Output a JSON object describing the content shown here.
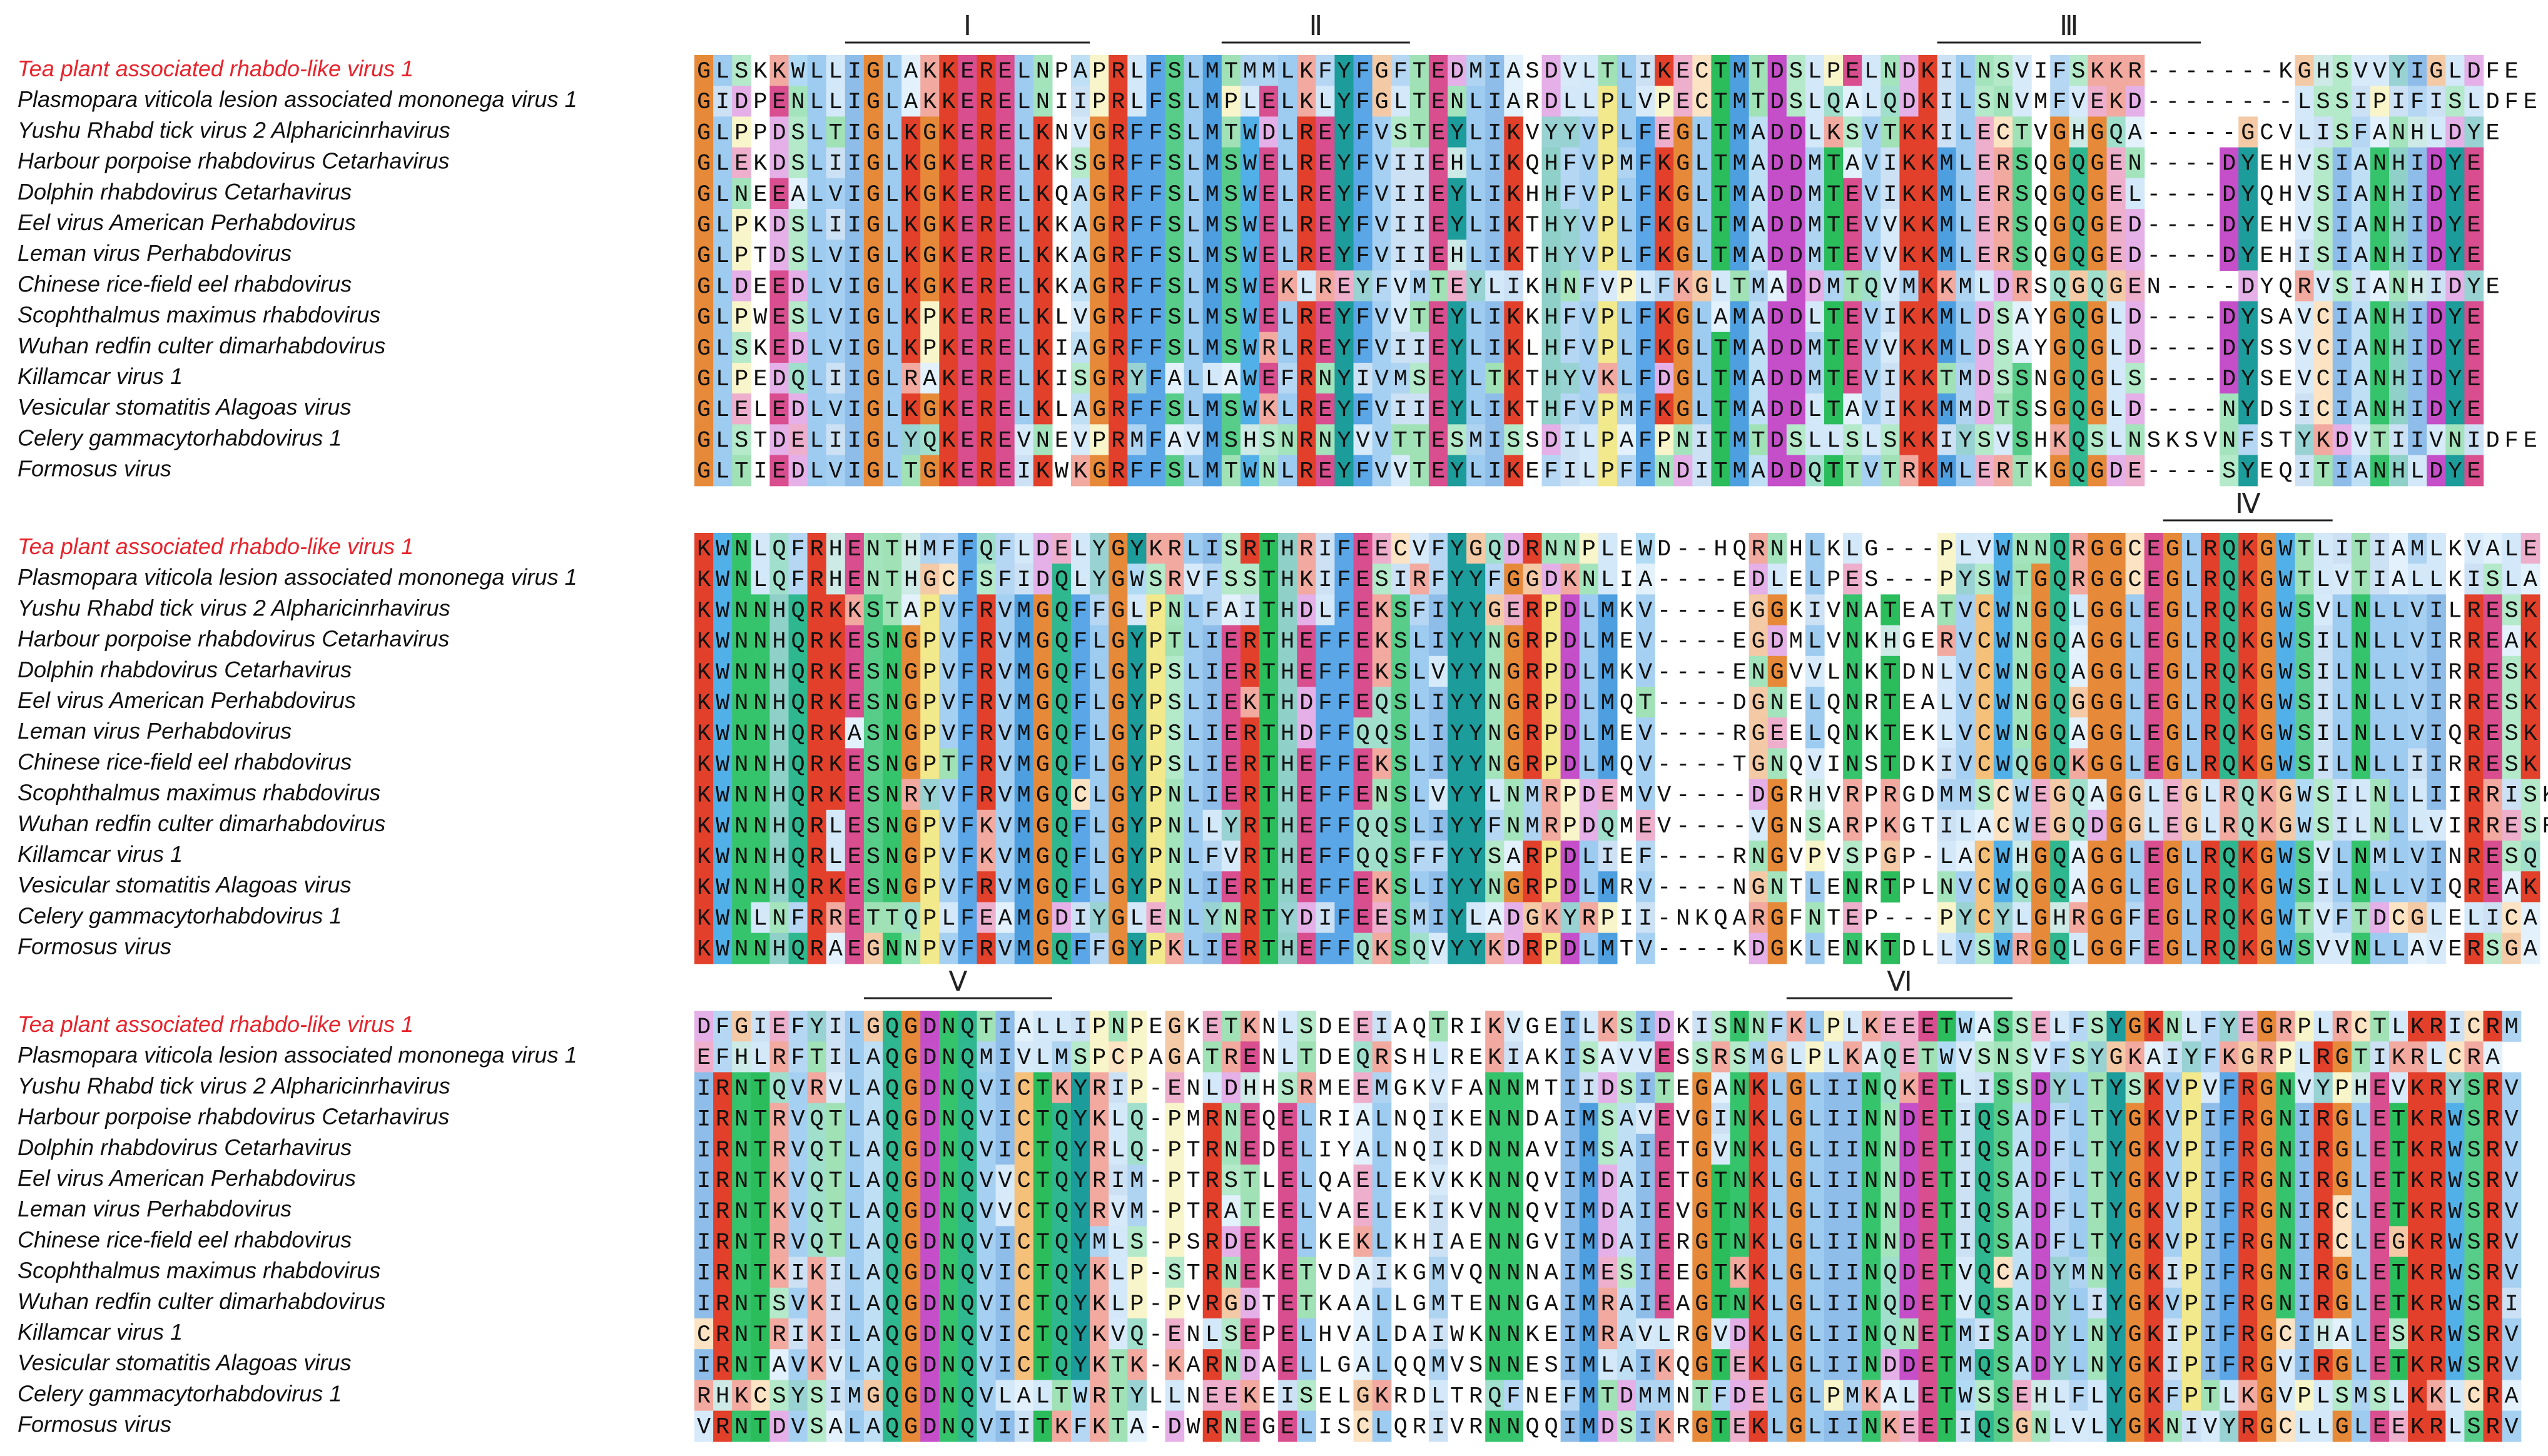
{
  "figure": {
    "highlight_color": "#e8232b",
    "blocks": [
      {
        "motifs": [
          {
            "label": "Ⅰ",
            "start": 8,
            "end": 20
          },
          {
            "label": "Ⅱ",
            "start": 28,
            "end": 37
          },
          {
            "label": "Ⅲ",
            "start": 66,
            "end": 79
          }
        ],
        "rows": [
          {
            "name": "Tea plant associated rhabdo-like virus 1",
            "highlight": true,
            "seq": "GLSKKWLLIGLAKKERELNPAPRLFSLMTMMLKFYFGFTEDMIASDVLTLIKECTMTDSLPELNDKILNSVIFSKKR-------KGHSVVYIGLDFE"
          },
          {
            "name": "Plasmopara viticola lesion associated mononega virus 1",
            "highlight": false,
            "seq": "GIDPENLLIGLAKKERELNIIPRLFSLMPLELKLYFGLTENLIARDLLPLVPECTMTDSLQALQDKILSNVMFVEKD--------LSSIPIFISLDFE"
          },
          {
            "name": "Yushu Rhabd tick virus 2 Alpharicinrhavirus",
            "highlight": false,
            "seq": "GLPPDSLTIGLKGKERELKNVGRFFSLMTWDLREYFVSTEYLIKVYYVPLFEGLTMADDLKSVTKKILECTVGHGQA-----GCVLISFANHLDYE"
          },
          {
            "name": "Harbour porpoise rhabdovirus Cetarhavirus",
            "highlight": false,
            "seq": "GLEKDSLIIGLKGKERELKKSGRFFSLMSWELREYFVIIEHLIKQHFVPMFKGLTMADDMTAVIKKMLERSQGQGEN----DYEHVSIANHIDYE"
          },
          {
            "name": "Dolphin rhabdovirus Cetarhavirus",
            "highlight": false,
            "seq": "GLNEEALVIGLKGKERELKQAGRFFSLMSWELREYFVIIEYLIKHHFVPLFKGLTMADDMTEVIKKMLERSQGQGEL----DYQHVSIANHIDYE"
          },
          {
            "name": "Eel virus American Perhabdovirus",
            "highlight": false,
            "seq": "GLPKDSLIIGLKGKERELKKAGRFFSLMSWELREYFVIIEYLIKTHYVPLFKGLTMADDMTEVVKKMLERSQGQGED----DYEHVSIANHIDYE"
          },
          {
            "name": "Leman virus Perhabdovirus",
            "highlight": false,
            "seq": "GLPTDSLVIGLKGKERELKKAGRFFSLMSWELREYFVIIEHLIKTHYVPLFKGLTMADDMTEVVKKMLERSQGQGED----DYEHISIANHIDYE"
          },
          {
            "name": "Chinese rice-field eel rhabdovirus",
            "highlight": false,
            "seq": "GLDEEDLVIGLKGKERELKKAGRFFSLMSWEKLREYFVMTEYLIKHNFVPLFKGLTMADDMTQVMKKMLDRSQGQGEN----DYQRVSIANHIDYE"
          },
          {
            "name": "Scophthalmus maximus rhabdovirus",
            "highlight": false,
            "seq": "GLPWESLVIGLKPKERELKLVGRFFSLMSWELREYFVVTEYLIKKHFVPLFKGLAMADDLTEVIKKMLDSAYGQGLD----DYSAVCIANHIDYE"
          },
          {
            "name": "Wuhan redfin culter dimarhabdovirus",
            "highlight": false,
            "seq": "GLSKEDLVIGLKPKERELKIAGRFFSLMSWRLREYFVIIEYLIKLHFVPLFKGLTMADDMTEVVKKMLDSAYGQGLD----DYSSVCIANHIDYE"
          },
          {
            "name": "Killamcar virus 1",
            "highlight": false,
            "seq": "GLPEDQLIIGLRAKERELKISGRYFALLAWEFRNYIVMSEYLTKTHYVKLFDGLTMADDMTEVIKKTMDSSNGQGLS----DYSEVCIANHIDYE"
          },
          {
            "name": "Vesicular stomatitis Alagoas virus",
            "highlight": false,
            "seq": "GLELEDLVIGLKGKERELKLAGRFFSLMSWKLREYFVIIEYLIKTHFVPMFKGLTMADDLTAVIKKMMDTSSGQGLD----NYDSICIANHIDYE"
          },
          {
            "name": "Celery gammacytorhabdovirus 1",
            "highlight": false,
            "seq": "GLSTDELIIGLYQKEREVNEVPRMFAVMSHSNRNYVVTTESMISSDILPAFPNITMTDSLLSLSKKIYSVSHKQSLNSKSVNFSTYKDVTIIVNIDFE"
          },
          {
            "name": "Formosus virus",
            "highlight": false,
            "seq": "GLTIEDLVIGLTGKEREIKWKGRFFSLMTWNLREYFVVTEYLIKEFILPFFNDITMADDQTTVTRKMLERTKGQGDE----SYEQITIANHLDYE"
          }
        ]
      },
      {
        "motifs": [
          {
            "label": "Ⅳ",
            "start": 78,
            "end": 86
          }
        ],
        "rows": [
          {
            "name": "Tea plant associated rhabdo-like virus 1",
            "highlight": true,
            "seq": "KWNLQFRHENTHMFFQFLDELYGYKRLISRTHRIFEECVFYGQDRNNPLEWD--HQRNHLKLG---PLVWNNQRGGCEGLRQKGWTLITIAMLKVALE"
          },
          {
            "name": "Plasmopara viticola lesion associated mononega virus 1",
            "highlight": false,
            "seq": "KWNLQFRHENTHGCFSFIDQLYGWSRVFSSTHKIFESIRFYYFGGDKNLIA----EDLELPES---PYSWTGQRGGCEGLRQKGWTLVTIALLKISLA"
          },
          {
            "name": "Yushu Rhabd tick virus 2 Alpharicinrhavirus",
            "highlight": false,
            "seq": "KWNNHQRKKSTAPVFRVMGQFFGLPNLFAITHDLFEKSFIYYGERPDLMKV----EGGKIVNATEATVCWNGQLGGLEGLRQKGWSVLNLLVILRESK"
          },
          {
            "name": "Harbour porpoise rhabdovirus Cetarhavirus",
            "highlight": false,
            "seq": "KWNNHQRKESNGPVFRVMGQFLGYPTLIERTHEFFEKSLIYYNGRPDLMEV----EGDMLVNKHGERVCWNGQAGGLEGLRQKGWSILNLLVIRREAK"
          },
          {
            "name": "Dolphin rhabdovirus Cetarhavirus",
            "highlight": false,
            "seq": "KWNNHQRKESNGPVFRVMGQFLGYPSLIERTHEFFEKSLVYYNGRPDLMKV----ENGVVLNKTDNLVCWNGQAGGLEGLRQKGWSILNLLVIRRESK"
          },
          {
            "name": "Eel virus American Perhabdovirus",
            "highlight": false,
            "seq": "KWNNHQRKESNGPVFRVMGQFLGYPSLIEKTHDFFEQSLIYYNGRPDLMQT----DGNELQNRTEALVCWNGQGGGLEGLRQKGWSILNLLVIRRESK"
          },
          {
            "name": "Leman virus Perhabdovirus",
            "highlight": false,
            "seq": "KWNNHQRKASNGPVFRVMGQFLGYPSLIERTHDFFQQSLIYYNGRPDLMEV----RGEELQNKTEKLVCWNGQAGGLEGLRQKGWSILNLLVIQRESK"
          },
          {
            "name": "Chinese rice-field eel rhabdovirus",
            "highlight": false,
            "seq": "KWNNHQRKESNGPTFRVMGQFLGYPSLIERTHEFFEKSLIYYNGRPDLMQV----TGNQVINSTDKIVCWQGQKGGLEGLRQKGWSILNLLIIRRESK"
          },
          {
            "name": "Scophthalmus maximus rhabdovirus",
            "highlight": false,
            "seq": "KWNNHQRKESNRYVFRVMGQCLGYPNLIERTHEFFENSLVYYLNMRPDEMVV----DGRHVRPRGDMMSCWEGQAGGLEGLRQKGWSILNLLIIRRISK"
          },
          {
            "name": "Wuhan redfin culter dimarhabdovirus",
            "highlight": false,
            "seq": "KWNNHQRLESNGPVFKVMGQFLGYPNLLYRTHEFFQQSLIYYFNMRPDQMEV----VGNSARPKGTILACWEGQDGGLEGLRQKGWSILNLLVIRRESR"
          },
          {
            "name": "Killamcar virus 1",
            "highlight": false,
            "seq": "KWNNHQRLESNGPVFKVMGQFLGYPNLFVRTHEFFQQSFFYYSARPDLIEF----RNGVPVSPGP-LACWHGQAGGLEGLRQKGWSVLNMLVINRESQ"
          },
          {
            "name": "Vesicular stomatitis Alagoas virus",
            "highlight": false,
            "seq": "KWNNHQRKESNGPVFRVMGQFLGYPNLIERTHEFFEKSLIYYNGRPDLMRV----NGNTLENRTPLNVCWQGQAGGLEGLRQKGWSILNLLVIQREAK"
          },
          {
            "name": "Celery gammacytorhabdovirus 1",
            "highlight": false,
            "seq": "KWNLNFRRETTQPLFEAMGDIYGLENLYNRTYDIFEESMIYLADGKYRPII-NKQARGFNTEP---PYCYLGHRGGFEGLRQKGWTVFTDCGLELICA"
          },
          {
            "name": "Formosus virus",
            "highlight": false,
            "seq": "KWNNHQRAEGNNPVFRVMGQFFGYPKLIERTHEFFQKSQVYYKDRPDLMTV----KDGKLENKTDLLVSWRGQLGGFEGLRQKGWSVVNLLAVERSGA"
          }
        ]
      },
      {
        "motifs": [
          {
            "label": "Ⅴ",
            "start": 9,
            "end": 18
          },
          {
            "label": "Ⅵ",
            "start": 58,
            "end": 69
          }
        ],
        "rows": [
          {
            "name": "Tea plant associated rhabdo-like virus 1",
            "highlight": true,
            "seq": "DFGIEFYILGQGDNQTIALLIPNPEGKETKNLSDEEIAQTRIKVGEILKSIDKISNNFKLPLKEEETWASSELFSYGKNLFYEGRPLRCTLKRICRM"
          },
          {
            "name": "Plasmopara viticola lesion associated mononega virus 1",
            "highlight": false,
            "seq": "EFHLRFTILAQGDNQMIVLMSPCPAGATRENLTDEQRSHLREKIAKISAVVESSRSMGLPLKAQETWVSNSVFSYGKAIYFKGRPLRGTIKRLCRA"
          },
          {
            "name": "Yushu Rhabd tick virus 2 Alpharicinrhavirus",
            "highlight": false,
            "seq": "IRNTQVRVLAQGDNQVICTKYRIP-ENLDHHSRMEEMGKVFANNMTIIDSITEGANKLGLIINQKETLISSDYLTYSKVPVFRGNVYPHEVKRYSRV"
          },
          {
            "name": "Harbour porpoise rhabdovirus Cetarhavirus",
            "highlight": false,
            "seq": "IRNTRVQTLAQGDNQVICTQYKLQ-PMRNEQELRIALNQIKENNDAIMSAVEVGINKLGLIINNDETIQSADFLTYGKVPIFRGNIRGLETKRWSRV"
          },
          {
            "name": "Dolphin rhabdovirus Cetarhavirus",
            "highlight": false,
            "seq": "IRNTRVQTLAQGDNQVICTQYRLQ-PTRNEDELIYALNQIKDNNAVIMSAIETGVNKLGLIINNDETIQSADFLTYGKVPIFRGNIRGLETKRWSRV"
          },
          {
            "name": "Eel virus American Perhabdovirus",
            "highlight": false,
            "seq": "IRNTKVQTLAQGDNQVVCTQYRIM-PTRSTLELQAELEKVKKNNQVIMDAIETGTNKLGLIINNDETIQSADFLTYGKVPIFRGNIRGLETKRWSRV"
          },
          {
            "name": "Leman virus Perhabdovirus",
            "highlight": false,
            "seq": "IRNTKVQTLAQGDNQVVCTQYRVM-PTRATEELVAELEKIKVNNQVIMDAIEVGTNKLGLIINNDETIQSADFLTYGKVPIFRGNIRCLETKRWSRV"
          },
          {
            "name": "Chinese rice-field eel rhabdovirus",
            "highlight": false,
            "seq": "IRNTRVQTLAQGDNQVICTQYMLS-PSRDEKELKEKLKHIAENNGVIMDAIERGTNKLGLIINNDETIQSADFLTYGKVPIFRGNIRCLEGKRWSRV"
          },
          {
            "name": "Scophthalmus maximus rhabdovirus",
            "highlight": false,
            "seq": "IRNTKIKILAQGDNQVICTQYKLP-STRNEKETVDAIKGMVQNNNAIMESIEEGTKKLGLIINQDETVQCADYMNYGKIPIFRGNIRGLETKRWSRV"
          },
          {
            "name": "Wuhan redfin culter dimarhabdovirus",
            "highlight": false,
            "seq": "IRNTSVKILAQGDNQVICTQYKLP-PVRGDTETKAALLGMTENNGAIMRAIEAGTNKLGLIINQDETVQSADYLIYGKVPIFRGNIRGLETKRWSRI"
          },
          {
            "name": "Killamcar virus 1",
            "highlight": false,
            "seq": "CRNTRIKILAQGDNQVICTQYKVQ-ENLSEPELHVALDAIWKNNKEIMRAVLRGVDKLGLIINQNETMISADYLNYGKIPIFRGCIHALESKRWSRV"
          },
          {
            "name": "Vesicular stomatitis Alagoas virus",
            "highlight": false,
            "seq": "IRNTAVKVLAQGDNQVICTQYKTK-KARNDAELLGALQQMVSNNESIMLAIKQGTEKLGLIINDDETMQSADYLNYGKIPIFRGVIRGLETKRWSRV"
          },
          {
            "name": "Celery gammacytorhabdovirus 1",
            "highlight": false,
            "seq": "RHKCSYSIMGQGDNQVLALTWRTYLLNEEKEISELGKRDLTRQFNEFMTDMMNTFDELGLPMKALETWSSEHLFLYGKFPTLKGVPLSMSLKKLCRA"
          },
          {
            "name": "Formosus virus",
            "highlight": false,
            "seq": "VRNTDVSALAQGDNQVIITKFKTA-DWRNEGELISCLQRIVRNNQQIMDSIKRGTEKLGLIINKEETIQSGNLVLYGKNIVYRGCLLGLEEKRLSRV"
          }
        ]
      }
    ]
  }
}
